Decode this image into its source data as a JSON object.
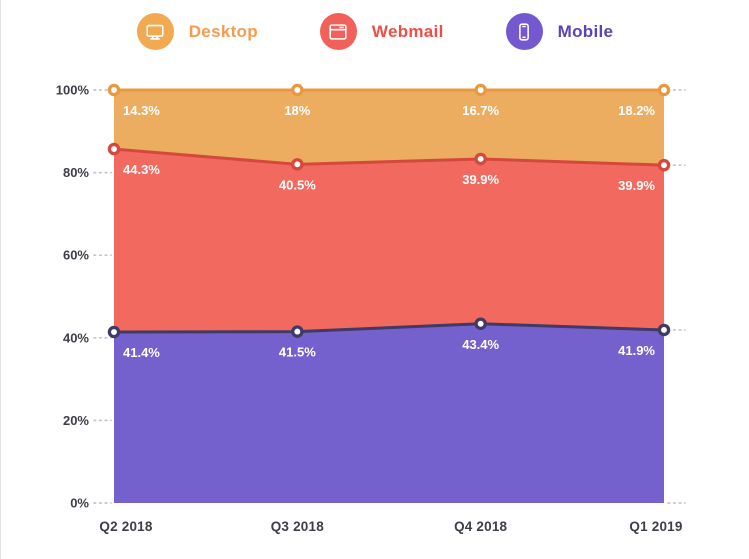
{
  "legend": [
    {
      "label": "Desktop",
      "icon": "desktop-icon",
      "color": "#F1A952",
      "text_color": "#F69C4F"
    },
    {
      "label": "Webmail",
      "icon": "webmail-icon",
      "color": "#F0615A",
      "text_color": "#EF4E47"
    },
    {
      "label": "Mobile",
      "icon": "mobile-icon",
      "color": "#7458D0",
      "text_color": "#5A43BA"
    }
  ],
  "chart_data": {
    "type": "area",
    "stacked": true,
    "normalized": true,
    "x": [
      "Q2 2018",
      "Q3 2018",
      "Q4 2018",
      "Q1 2019"
    ],
    "series": [
      {
        "name": "Mobile",
        "values": [
          41.4,
          41.5,
          43.4,
          41.9
        ],
        "labels": [
          "41.4%",
          "41.5%",
          "43.4%",
          "41.9%"
        ],
        "fill": "#7561CE",
        "line": "#3F3A66"
      },
      {
        "name": "Webmail",
        "values": [
          44.3,
          40.5,
          39.9,
          39.9
        ],
        "labels": [
          "44.3%",
          "40.5%",
          "39.9%",
          "39.9%"
        ],
        "fill": "#F2695F",
        "line": "#D5483E"
      },
      {
        "name": "Desktop",
        "values": [
          14.3,
          18.0,
          16.7,
          18.2
        ],
        "labels": [
          "14.3%",
          "18%",
          "16.7%",
          "18.2%"
        ],
        "fill": "#EDAD60",
        "line": "#E8993E"
      }
    ],
    "y_ticks": [
      "100%",
      "80%",
      "60%",
      "40%",
      "20%",
      "0%"
    ],
    "ylim": [
      0,
      100
    ],
    "grid": "dotted-ticks",
    "legend_position": "top",
    "axis_text_color": "#3D3E46",
    "tick_dot_color": "#C6C6C6",
    "data_label_color": "#FFFFFF"
  }
}
